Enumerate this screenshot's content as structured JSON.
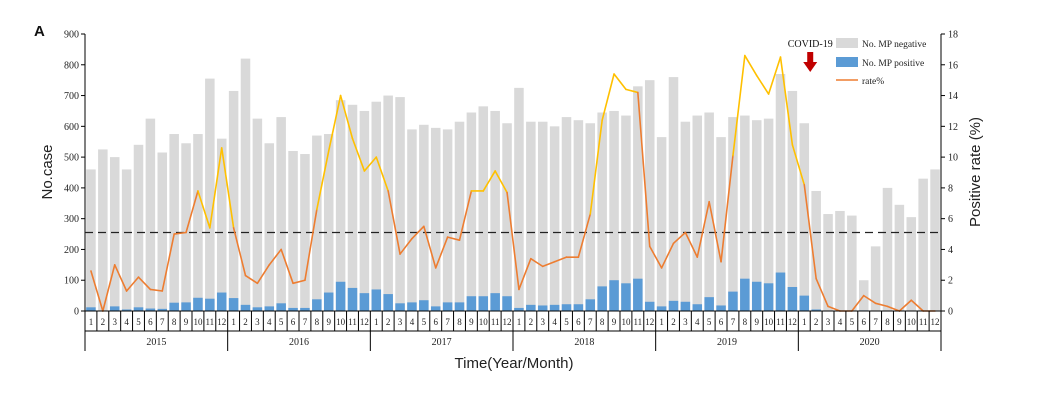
{
  "chart_data": {
    "type": "bar",
    "panel_label": "A",
    "xlabel": "Time(Year/Month)",
    "ylabel": "No.case",
    "y2label": "Positive rate (%)",
    "ylim": [
      0,
      900
    ],
    "y2lim": [
      0,
      18
    ],
    "yticks": [
      "0",
      "100",
      "200",
      "300",
      "400",
      "500",
      "600",
      "700",
      "800",
      "900"
    ],
    "y2ticks": [
      "0",
      "2",
      "4",
      "6",
      "8",
      "10",
      "12",
      "14",
      "16",
      "18"
    ],
    "months": [
      "1",
      "2",
      "3",
      "4",
      "5",
      "6",
      "7",
      "8",
      "9",
      "10",
      "11",
      "12"
    ],
    "years": [
      "2015",
      "2016",
      "2017",
      "2018",
      "2019",
      "2020"
    ],
    "threshold_rate": 5.1,
    "annotation": "COVID-19",
    "annotation_index": 61,
    "series": [
      {
        "name": "No. MP negative",
        "color": "#d9d9d9",
        "kind": "bar",
        "values": [
          460,
          525,
          500,
          460,
          540,
          625,
          515,
          575,
          545,
          575,
          755,
          560,
          715,
          820,
          625,
          545,
          630,
          520,
          510,
          570,
          575,
          685,
          670,
          650,
          680,
          700,
          695,
          590,
          605,
          595,
          590,
          615,
          645,
          665,
          650,
          610,
          725,
          615,
          615,
          600,
          630,
          620,
          610,
          645,
          650,
          635,
          730,
          750,
          565,
          760,
          615,
          635,
          645,
          565,
          630,
          635,
          620,
          625,
          770,
          715,
          610,
          390,
          315,
          325,
          310,
          100,
          210,
          400,
          345,
          305,
          430,
          460
        ]
      },
      {
        "name": "No. MP positive",
        "color": "#5b9bd5",
        "kind": "bar",
        "values": [
          12,
          0,
          15,
          5,
          12,
          8,
          7,
          27,
          28,
          43,
          40,
          60,
          42,
          20,
          12,
          15,
          25,
          10,
          10,
          38,
          60,
          95,
          75,
          58,
          70,
          55,
          25,
          28,
          35,
          15,
          28,
          28,
          48,
          48,
          58,
          48,
          10,
          20,
          18,
          20,
          22,
          22,
          38,
          80,
          100,
          90,
          105,
          30,
          15,
          33,
          30,
          22,
          45,
          18,
          63,
          105,
          95,
          90,
          125,
          78,
          50,
          5,
          0,
          0,
          0,
          2,
          0,
          0,
          0,
          0,
          0,
          0
        ]
      },
      {
        "name": "rate%",
        "color": "#ed7d31",
        "highlight_color": "#ffc000",
        "kind": "line",
        "values": [
          2.6,
          0,
          3,
          1.3,
          2.2,
          1.4,
          1.3,
          5,
          5.1,
          7.8,
          5.4,
          10.6,
          5.4,
          2.3,
          1.8,
          3,
          4,
          1.8,
          2,
          6.6,
          10.4,
          14,
          11.2,
          9.1,
          10,
          7.8,
          3.7,
          4.7,
          5.5,
          2.8,
          4.8,
          4.6,
          7.8,
          7.8,
          9.1,
          7.7,
          1.4,
          3.4,
          2.9,
          3.2,
          3.5,
          3.5,
          6.3,
          12.4,
          15.4,
          14.4,
          14.2,
          4.2,
          2.8,
          4.4,
          5.1,
          3.5,
          7.1,
          3.2,
          10.1,
          16.6,
          15.3,
          14.1,
          16.5,
          10.8,
          8.2,
          2.1,
          0.3,
          0,
          0,
          1,
          0.5,
          0.3,
          0,
          0.7,
          0,
          0
        ]
      }
    ]
  }
}
